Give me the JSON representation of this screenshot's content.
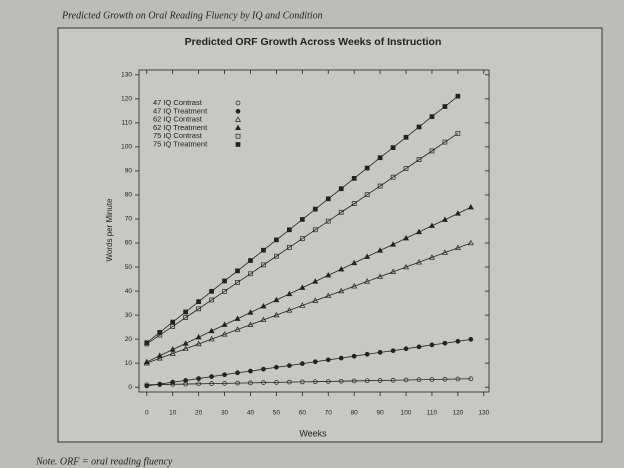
{
  "caption": "Predicted Growth on Oral Reading Fluency by IQ and Condition",
  "note": "Note. ORF = oral reading fluency",
  "chart_data": {
    "type": "line",
    "title": "Predicted ORF Growth Across Weeks of Instruction",
    "x_label": "Weeks",
    "y_label": "Words per Minute",
    "x": [
      0,
      5,
      10,
      15,
      20,
      25,
      30,
      35,
      40,
      45,
      50,
      55,
      60,
      65,
      70,
      75,
      80,
      85,
      90,
      95,
      100,
      105,
      110,
      115,
      120,
      125
    ],
    "series": [
      {
        "name": "47 IQ Contrast",
        "color": "#222222",
        "marker": "circle",
        "filled": false,
        "values": [
          1,
          1.1,
          1.2,
          1.3,
          1.4,
          1.5,
          1.6,
          1.7,
          1.8,
          1.9,
          2,
          2.1,
          2.2,
          2.3,
          2.4,
          2.5,
          2.6,
          2.7,
          2.8,
          2.9,
          3,
          3.1,
          3.2,
          3.3,
          3.4,
          3.5
        ]
      },
      {
        "name": "47 IQ Treatment",
        "color": "#222222",
        "marker": "circle",
        "filled": true,
        "values": [
          0.5,
          1.3,
          2.1,
          2.8,
          3.6,
          4.4,
          5.2,
          6,
          6.7,
          7.5,
          8.3,
          9,
          9.8,
          10.6,
          11.4,
          12.1,
          12.9,
          13.7,
          14.5,
          15.2,
          16,
          16.8,
          17.6,
          18.3,
          19.1,
          19.9
        ]
      },
      {
        "name": "62 IQ Contrast",
        "color": "#222222",
        "marker": "triangle",
        "filled": false,
        "values": [
          10,
          12,
          14,
          16,
          18,
          20,
          22,
          24,
          26,
          28,
          30,
          32,
          34,
          36,
          38,
          40,
          42,
          44,
          46,
          48,
          50,
          52,
          54,
          56,
          58,
          60
        ]
      },
      {
        "name": "62 IQ Treatment",
        "color": "#222222",
        "marker": "triangle",
        "filled": true,
        "values": [
          10.5,
          13.1,
          15.7,
          18.2,
          20.8,
          23.4,
          26,
          28.5,
          31.1,
          33.7,
          36.3,
          38.8,
          41.4,
          44,
          46.6,
          49.1,
          51.7,
          54.3,
          56.9,
          59.4,
          62,
          64.6,
          67.2,
          69.7,
          72.3,
          74.9
        ]
      },
      {
        "name": "75 IQ Contrast",
        "color": "#222222",
        "marker": "square",
        "filled": false,
        "values": [
          18,
          21.7,
          25.3,
          29,
          32.6,
          36.3,
          39.9,
          43.6,
          47.2,
          50.9,
          54.5,
          58.2,
          61.8,
          65.5,
          69.1,
          72.8,
          76.4,
          80.1,
          83.7,
          87.4,
          91,
          94.7,
          98.3,
          102,
          105.6,
          null
        ]
      },
      {
        "name": "75 IQ Treatment",
        "color": "#222222",
        "marker": "square",
        "filled": true,
        "values": [
          18.5,
          22.8,
          27.1,
          31.3,
          35.6,
          39.9,
          44.2,
          48.4,
          52.7,
          57,
          61.3,
          65.5,
          69.8,
          74.1,
          78.4,
          82.6,
          86.9,
          91.2,
          95.5,
          99.7,
          104,
          108.3,
          112.6,
          116.8,
          121.1,
          null
        ]
      }
    ],
    "xlim": [
      -3,
      132
    ],
    "xticks": [
      0,
      10,
      20,
      30,
      40,
      50,
      60,
      70,
      80,
      90,
      100,
      110,
      120,
      130
    ],
    "ylim": [
      -2,
      132
    ],
    "yticks": [
      0,
      10,
      20,
      30,
      40,
      50,
      60,
      70,
      80,
      90,
      100,
      110,
      120,
      130
    ],
    "legend": "upper left",
    "grid": false
  }
}
